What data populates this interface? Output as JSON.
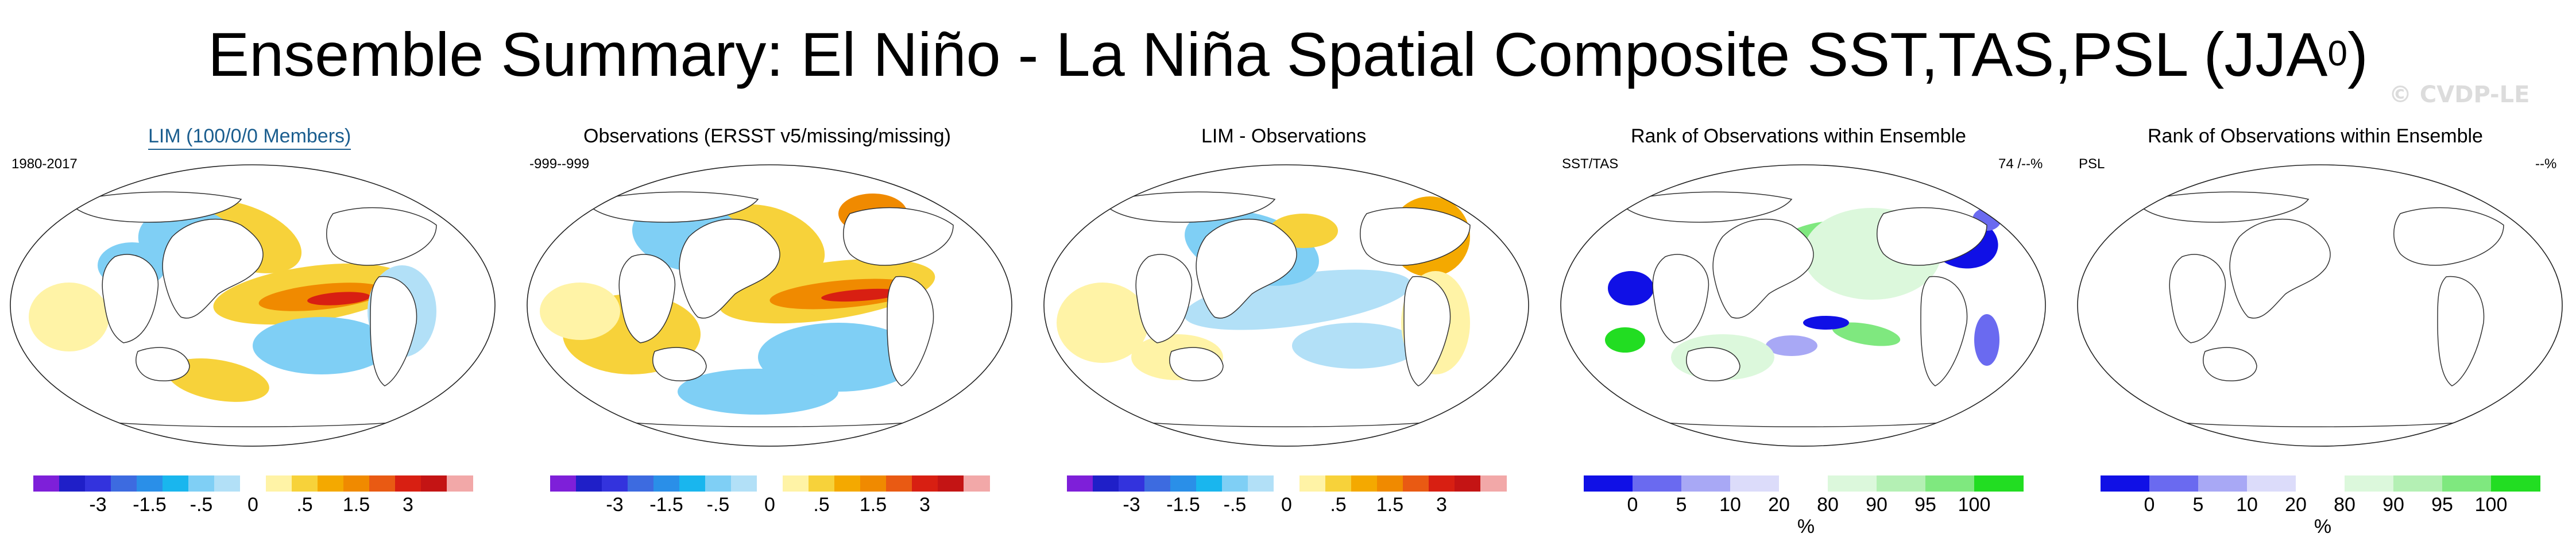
{
  "title": {
    "text": "Ensemble Summary: El Niño - La Niña Spatial Composite SST,TAS,PSL (JJA",
    "superscript": "0",
    "closing": ")"
  },
  "watermark": "© CVDP-LE",
  "diverging_colors": [
    "#7e1fd9",
    "#1f1fc8",
    "#3333dd",
    "#3d6be0",
    "#2a8fe8",
    "#19b6ee",
    "#7fcff5",
    "#b2e0f7",
    "#ffffff",
    "#fff3a6",
    "#f7d23a",
    "#f4a900",
    "#f08a00",
    "#e95a13",
    "#d81f12",
    "#c41414",
    "#f2a8a8"
  ],
  "rank_colors": [
    "#1010e6",
    "#6a6af0",
    "#a8a8f5",
    "#dcdcfa",
    "#ffffff",
    "#dcf8dc",
    "#b4f0b4",
    "#7fe87f",
    "#22dd22"
  ],
  "diverging_ticks": [
    "-3",
    "-1.5",
    "-.5",
    "0",
    ".5",
    "1.5",
    "3"
  ],
  "rank_ticks": [
    "0",
    "5",
    "10",
    "20",
    "80",
    "90",
    "95",
    "100"
  ],
  "rank_unit": "%",
  "panels": [
    {
      "title": "LIM (100/0/0 Members)",
      "left_label": "1980-2017",
      "right_label": "",
      "scale": "diverging"
    },
    {
      "title": "Observations (ERSST v5/missing/missing)",
      "left_label": "-999--999",
      "right_label": "",
      "scale": "diverging"
    },
    {
      "title": "LIM - Observations",
      "left_label": "",
      "right_label": "",
      "scale": "diverging"
    },
    {
      "title": "Rank of Observations within Ensemble",
      "left_label": "SST/TAS",
      "right_label": "74 /--%",
      "scale": "rank"
    },
    {
      "title": "Rank of Observations within Ensemble",
      "left_label": "PSL",
      "right_label": "--%",
      "scale": "rank"
    }
  ]
}
